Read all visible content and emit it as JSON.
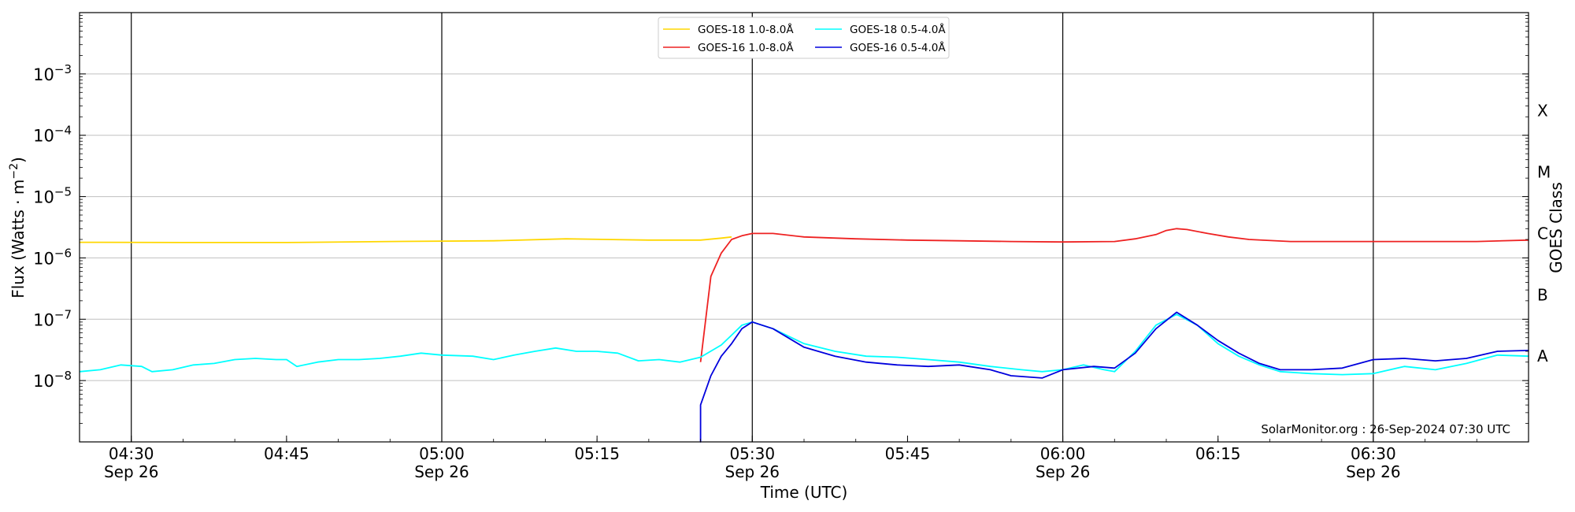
{
  "chart_data": {
    "type": "line",
    "y_scale": "log",
    "ylim": [
      1e-09,
      0.01
    ],
    "xlim": [
      "04:25",
      "06:45"
    ],
    "xlabel": "Time (UTC)",
    "ylabel": "Flux (Watts · m⁻²)",
    "right_axis_label": "GOES Class",
    "x_major_ticks": [
      "04:30",
      "04:45",
      "05:00",
      "05:15",
      "05:30",
      "05:45",
      "06:00",
      "06:15",
      "06:30"
    ],
    "x_tick_date": "Sep 26",
    "x_ticks_with_date": [
      "04:30",
      "05:00",
      "05:30",
      "06:00",
      "06:30"
    ],
    "y_ticks": [
      "1e-8",
      "1e-7",
      "1e-6",
      "1e-5",
      "1e-4",
      "1e-3"
    ],
    "class_levels": [
      {
        "label": "A",
        "flux": 2.5e-08
      },
      {
        "label": "B",
        "flux": 2.5e-07
      },
      {
        "label": "C",
        "flux": 2.5e-06
      },
      {
        "label": "M",
        "flux": 2.5e-05
      },
      {
        "label": "X",
        "flux": 0.00025
      }
    ],
    "legend_position": "top-center",
    "credit": "SolarMonitor.org : 26-Sep-2024 07:30 UTC",
    "grid": {
      "horizontal": true,
      "vertical_lines_at": [
        "04:30",
        "05:00",
        "05:30",
        "06:00",
        "06:30"
      ]
    },
    "series": [
      {
        "name": "GOES-18 1.0-8.0Å",
        "color": "#ffd700",
        "points": [
          [
            "04:25",
            1.8e-06
          ],
          [
            "04:35",
            1.78e-06
          ],
          [
            "04:45",
            1.78e-06
          ],
          [
            "04:55",
            1.85e-06
          ],
          [
            "05:05",
            1.9e-06
          ],
          [
            "05:12",
            2.05e-06
          ],
          [
            "05:20",
            1.95e-06
          ],
          [
            "05:25",
            1.95e-06
          ],
          [
            "05:27",
            2.1e-06
          ],
          [
            "05:28",
            2.2e-06
          ]
        ]
      },
      {
        "name": "GOES-16 1.0-8.0Å",
        "color": "#ee2222",
        "points": [
          [
            "05:25",
            2e-08
          ],
          [
            "05:26",
            5e-07
          ],
          [
            "05:27",
            1.2e-06
          ],
          [
            "05:28",
            2e-06
          ],
          [
            "05:29",
            2.3e-06
          ],
          [
            "05:30",
            2.5e-06
          ],
          [
            "05:32",
            2.5e-06
          ],
          [
            "05:35",
            2.2e-06
          ],
          [
            "05:40",
            2.05e-06
          ],
          [
            "05:45",
            1.95e-06
          ],
          [
            "05:50",
            1.9e-06
          ],
          [
            "05:55",
            1.85e-06
          ],
          [
            "06:00",
            1.82e-06
          ],
          [
            "06:05",
            1.85e-06
          ],
          [
            "06:07",
            2.05e-06
          ],
          [
            "06:09",
            2.4e-06
          ],
          [
            "06:10",
            2.8e-06
          ],
          [
            "06:11",
            3e-06
          ],
          [
            "06:12",
            2.9e-06
          ],
          [
            "06:14",
            2.5e-06
          ],
          [
            "06:16",
            2.2e-06
          ],
          [
            "06:18",
            2e-06
          ],
          [
            "06:22",
            1.85e-06
          ],
          [
            "06:30",
            1.85e-06
          ],
          [
            "06:40",
            1.85e-06
          ],
          [
            "06:45",
            1.95e-06
          ]
        ]
      },
      {
        "name": "GOES-18 0.5-4.0Å",
        "color": "#00ffff",
        "points": [
          [
            "04:25",
            1.4e-08
          ],
          [
            "04:27",
            1.5e-08
          ],
          [
            "04:29",
            1.8e-08
          ],
          [
            "04:31",
            1.7e-08
          ],
          [
            "04:32",
            1.4e-08
          ],
          [
            "04:34",
            1.5e-08
          ],
          [
            "04:36",
            1.8e-08
          ],
          [
            "04:38",
            1.9e-08
          ],
          [
            "04:40",
            2.2e-08
          ],
          [
            "04:42",
            2.3e-08
          ],
          [
            "04:44",
            2.2e-08
          ],
          [
            "04:45",
            2.2e-08
          ],
          [
            "04:46",
            1.7e-08
          ],
          [
            "04:48",
            2e-08
          ],
          [
            "04:50",
            2.2e-08
          ],
          [
            "04:52",
            2.2e-08
          ],
          [
            "04:54",
            2.3e-08
          ],
          [
            "04:56",
            2.5e-08
          ],
          [
            "04:58",
            2.8e-08
          ],
          [
            "05:00",
            2.6e-08
          ],
          [
            "05:03",
            2.5e-08
          ],
          [
            "05:05",
            2.2e-08
          ],
          [
            "05:07",
            2.6e-08
          ],
          [
            "05:09",
            3e-08
          ],
          [
            "05:11",
            3.4e-08
          ],
          [
            "05:13",
            3e-08
          ],
          [
            "05:15",
            3e-08
          ],
          [
            "05:17",
            2.8e-08
          ],
          [
            "05:19",
            2.1e-08
          ],
          [
            "05:21",
            2.2e-08
          ],
          [
            "05:23",
            2e-08
          ],
          [
            "05:25",
            2.4e-08
          ],
          [
            "05:27",
            3.8e-08
          ],
          [
            "05:28",
            5.5e-08
          ],
          [
            "05:29",
            8e-08
          ],
          [
            "05:30",
            9e-08
          ],
          [
            "05:32",
            7e-08
          ],
          [
            "05:35",
            4e-08
          ],
          [
            "05:38",
            3e-08
          ],
          [
            "05:41",
            2.5e-08
          ],
          [
            "05:44",
            2.4e-08
          ],
          [
            "05:47",
            2.2e-08
          ],
          [
            "05:50",
            2e-08
          ],
          [
            "05:53",
            1.7e-08
          ],
          [
            "05:56",
            1.5e-08
          ],
          [
            "05:58",
            1.4e-08
          ],
          [
            "06:00",
            1.5e-08
          ],
          [
            "06:02",
            1.8e-08
          ],
          [
            "06:04",
            1.5e-08
          ],
          [
            "06:05",
            1.4e-08
          ],
          [
            "06:07",
            3e-08
          ],
          [
            "06:09",
            8e-08
          ],
          [
            "06:11",
            1.2e-07
          ],
          [
            "06:13",
            8e-08
          ],
          [
            "06:15",
            4e-08
          ],
          [
            "06:17",
            2.5e-08
          ],
          [
            "06:19",
            1.8e-08
          ],
          [
            "06:21",
            1.4e-08
          ],
          [
            "06:24",
            1.3e-08
          ],
          [
            "06:27",
            1.25e-08
          ],
          [
            "06:30",
            1.3e-08
          ],
          [
            "06:33",
            1.7e-08
          ],
          [
            "06:36",
            1.5e-08
          ],
          [
            "06:39",
            1.9e-08
          ],
          [
            "06:42",
            2.6e-08
          ],
          [
            "06:45",
            2.5e-08
          ]
        ]
      },
      {
        "name": "GOES-16 0.5-4.0Å",
        "color": "#0000dd",
        "points": [
          [
            "05:25",
            4e-09
          ],
          [
            "05:25",
            1e-09
          ],
          [
            "05:25",
            4e-09
          ],
          [
            "05:26",
            1.2e-08
          ],
          [
            "05:27",
            2.5e-08
          ],
          [
            "05:28",
            4e-08
          ],
          [
            "05:29",
            7e-08
          ],
          [
            "05:30",
            9e-08
          ],
          [
            "05:32",
            7e-08
          ],
          [
            "05:35",
            3.5e-08
          ],
          [
            "05:38",
            2.5e-08
          ],
          [
            "05:41",
            2e-08
          ],
          [
            "05:44",
            1.8e-08
          ],
          [
            "05:47",
            1.7e-08
          ],
          [
            "05:50",
            1.8e-08
          ],
          [
            "05:53",
            1.5e-08
          ],
          [
            "05:55",
            1.2e-08
          ],
          [
            "05:58",
            1.1e-08
          ],
          [
            "06:00",
            1.5e-08
          ],
          [
            "06:03",
            1.7e-08
          ],
          [
            "06:05",
            1.6e-08
          ],
          [
            "06:07",
            2.8e-08
          ],
          [
            "06:09",
            7e-08
          ],
          [
            "06:11",
            1.3e-07
          ],
          [
            "06:13",
            8e-08
          ],
          [
            "06:15",
            4.5e-08
          ],
          [
            "06:17",
            2.8e-08
          ],
          [
            "06:19",
            1.9e-08
          ],
          [
            "06:21",
            1.5e-08
          ],
          [
            "06:24",
            1.5e-08
          ],
          [
            "06:27",
            1.6e-08
          ],
          [
            "06:30",
            2.2e-08
          ],
          [
            "06:33",
            2.3e-08
          ],
          [
            "06:36",
            2.1e-08
          ],
          [
            "06:39",
            2.3e-08
          ],
          [
            "06:42",
            3e-08
          ],
          [
            "06:45",
            3.1e-08
          ]
        ]
      }
    ]
  }
}
